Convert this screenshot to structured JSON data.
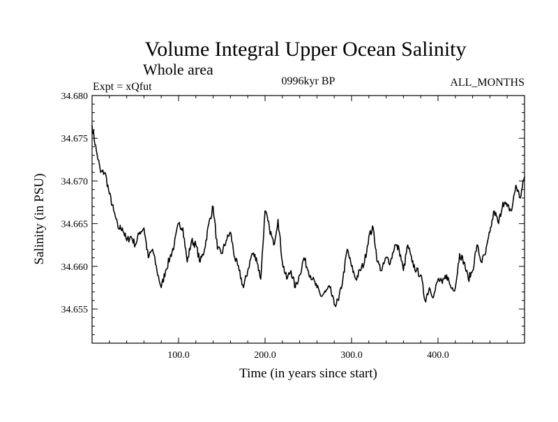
{
  "chart_data": {
    "type": "line",
    "title": "Volume Integral Upper Ocean Salinity",
    "subtitle": "Whole area",
    "annotations": {
      "experiment": "Expt = xQfut",
      "period": "0996kyr BP",
      "months": "ALL_MONTHS"
    },
    "xlabel": "Time (in years since start)",
    "ylabel": "Salinity (in PSU)",
    "xlim": [
      0,
      500
    ],
    "ylim": [
      34.651,
      34.68
    ],
    "x_ticks": [
      100,
      200,
      300,
      400
    ],
    "x_tick_labels": [
      "100.0",
      "200.0",
      "300.0",
      "400.0"
    ],
    "y_ticks": [
      34.655,
      34.66,
      34.665,
      34.67,
      34.675,
      34.68
    ],
    "y_tick_labels": [
      "34.655",
      "34.660",
      "34.665",
      "34.670",
      "34.675",
      "34.680"
    ],
    "grid": false,
    "line_color": "#000000",
    "series": [
      {
        "name": "Salinity",
        "x": [
          0,
          5,
          10,
          15,
          20,
          25,
          30,
          35,
          40,
          45,
          50,
          55,
          60,
          65,
          70,
          75,
          80,
          85,
          90,
          95,
          100,
          105,
          110,
          115,
          120,
          125,
          130,
          135,
          140,
          145,
          150,
          155,
          160,
          165,
          170,
          175,
          180,
          185,
          190,
          195,
          200,
          205,
          210,
          215,
          220,
          225,
          230,
          235,
          240,
          245,
          250,
          255,
          260,
          265,
          270,
          275,
          280,
          285,
          290,
          295,
          300,
          305,
          310,
          315,
          320,
          325,
          330,
          335,
          340,
          345,
          350,
          355,
          360,
          365,
          370,
          375,
          380,
          385,
          390,
          395,
          400,
          405,
          410,
          415,
          420,
          425,
          430,
          435,
          440,
          445,
          450,
          455,
          460,
          465,
          470,
          475,
          480,
          485,
          490,
          495,
          500
        ],
        "values": [
          34.6765,
          34.6735,
          34.671,
          34.671,
          34.6685,
          34.6665,
          34.6645,
          34.6645,
          34.663,
          34.6635,
          34.6625,
          34.664,
          34.6645,
          34.661,
          34.662,
          34.6595,
          34.6575,
          34.6595,
          34.661,
          34.6625,
          34.665,
          34.6645,
          34.6605,
          34.663,
          34.6625,
          34.6605,
          34.662,
          34.665,
          34.667,
          34.662,
          34.6615,
          34.663,
          34.664,
          34.661,
          34.6595,
          34.6575,
          34.6595,
          34.6615,
          34.661,
          34.6585,
          34.6665,
          34.6645,
          34.6625,
          34.6655,
          34.6605,
          34.6585,
          34.6595,
          34.6575,
          34.659,
          34.661,
          34.6595,
          34.6585,
          34.6575,
          34.6565,
          34.657,
          34.6575,
          34.6555,
          34.656,
          34.6585,
          34.662,
          34.66,
          34.6585,
          34.6595,
          34.6605,
          34.6635,
          34.6645,
          34.6605,
          34.6595,
          34.661,
          34.6605,
          34.6625,
          34.662,
          34.6595,
          34.6625,
          34.6605,
          34.6595,
          34.659,
          34.656,
          34.6575,
          34.6565,
          34.6585,
          34.658,
          34.659,
          34.6575,
          34.6575,
          34.6615,
          34.6605,
          34.6585,
          34.6595,
          34.6625,
          34.6605,
          34.6615,
          34.664,
          34.6665,
          34.665,
          34.6675,
          34.667,
          34.6665,
          34.6695,
          34.668,
          34.6705
        ]
      }
    ]
  }
}
